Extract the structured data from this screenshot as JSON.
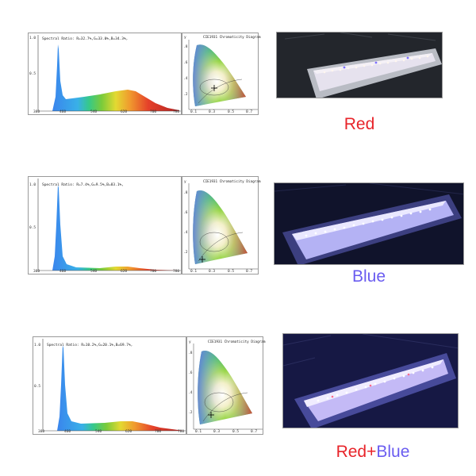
{
  "panels": [
    {
      "spectral_ratio": "Spectral Ratio:  R=32.7%,G=33.0%,B=34.3%,",
      "y_ticks": [
        "1.0",
        "0.5"
      ],
      "x_ticks": [
        "380",
        "460",
        "540",
        "620",
        "700",
        "780"
      ],
      "cie_title": "CIE1931 Chromaticity Diagram",
      "cie_y_label": "y",
      "cie_x_ticks": [
        "0.1",
        "0.3",
        "0.5",
        "0.7"
      ],
      "cie_y_ticks": [
        ".8",
        ".6",
        ".4",
        ".2"
      ],
      "caption": "Red",
      "caption_color": "#e8242a",
      "peak_nm": 450,
      "secondary_level": 0.22
    },
    {
      "spectral_ratio": "Spectral Ratio:  R=7.4%,G=9.5%,B=83.1%,",
      "y_ticks": [
        "1.0",
        "0.5"
      ],
      "x_ticks": [
        "380",
        "460",
        "540",
        "620",
        "700",
        "780"
      ],
      "cie_title": "CIE1931 Chromaticity Diagram",
      "cie_y_label": "y",
      "cie_x_ticks": [
        "0.1",
        "0.3",
        "0.5",
        "0.7"
      ],
      "cie_y_ticks": [
        ".8",
        ".6",
        ".4",
        ".2"
      ],
      "caption": "Blue",
      "caption_color": "#6a5cf0",
      "peak_nm": 450,
      "secondary_level": 0.04
    },
    {
      "spectral_ratio": "Spectral Ratio:  R=10.2%,G=20.1%,B=69.7%,",
      "y_ticks": [
        "1.0",
        "0.5"
      ],
      "x_ticks": [
        "380",
        "460",
        "540",
        "620",
        "700",
        "780"
      ],
      "cie_title": "CIE1931 Chromaticity Diagram",
      "cie_y_label": "y",
      "cie_x_ticks": [
        "0.1",
        "0.3",
        "0.5",
        "0.7"
      ],
      "cie_y_ticks": [
        ".8",
        ".6",
        ".4",
        ".2"
      ],
      "caption": "Red+Blue",
      "caption_color": "#e8242a",
      "caption_color_2": "#6a5cf0",
      "peak_nm": 450,
      "secondary_level": 0.08
    }
  ]
}
